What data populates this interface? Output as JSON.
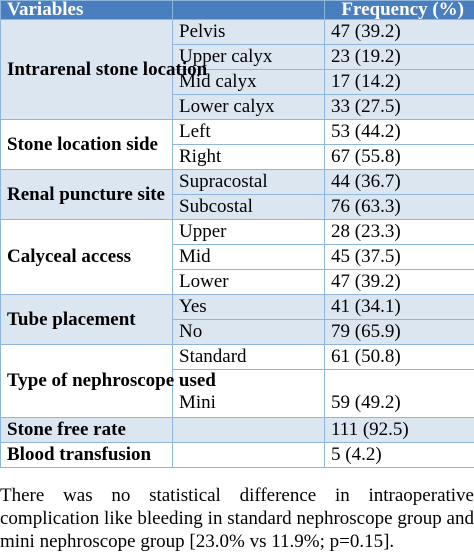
{
  "table": {
    "headers": {
      "variables": "Variables",
      "frequency": "Frequency (%)"
    },
    "groups": [
      {
        "label": "Intrarenal stone location",
        "rows": [
          {
            "category": "Pelvis",
            "value": "47 (39.2)"
          },
          {
            "category": "Upper calyx",
            "value": "23 (19.2)"
          },
          {
            "category": "Mid calyx",
            "value": "17 (14.2)"
          },
          {
            "category": "Lower calyx",
            "value": "33 (27.5)"
          }
        ]
      },
      {
        "label": "Stone location side",
        "rows": [
          {
            "category": "Left",
            "value": "53 (44.2)"
          },
          {
            "category": "Right",
            "value": "67 (55.8)"
          }
        ]
      },
      {
        "label": "Renal puncture site",
        "rows": [
          {
            "category": "Supracostal",
            "value": "44 (36.7)"
          },
          {
            "category": "Subcostal",
            "value": "76 (63.3)"
          }
        ]
      },
      {
        "label": "Calyceal access",
        "rows": [
          {
            "category": "Upper",
            "value": "28 (23.3)"
          },
          {
            "category": "Mid",
            "value": "45 (37.5)"
          },
          {
            "category": "Lower",
            "value": "47 (39.2)"
          }
        ]
      },
      {
        "label": "Tube placement",
        "rows": [
          {
            "category": "Yes",
            "value": "41 (34.1)"
          },
          {
            "category": "No",
            "value": "79 (65.9)"
          }
        ]
      },
      {
        "label": "Type of nephroscope used",
        "rows": [
          {
            "category": "Standard",
            "value": "61 (50.8)"
          },
          {
            "category": "Mini",
            "value": "59 (49.2)"
          }
        ]
      },
      {
        "label": "Stone free rate",
        "rows": [
          {
            "category": "",
            "value": "111 (92.5)"
          }
        ]
      },
      {
        "label": "Blood transfusion",
        "rows": [
          {
            "category": "",
            "value": "5 (4.2)"
          }
        ]
      }
    ]
  },
  "caption": "There was no statistical difference in intraoperative complication like bleeding in standard nephroscope group and mini nephroscope group [23.0% vs 11.9%; p=0.15]."
}
